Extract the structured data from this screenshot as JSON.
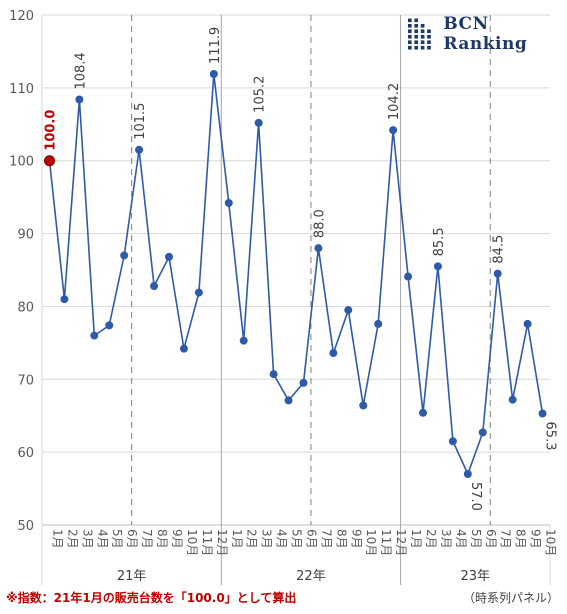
{
  "logo": {
    "text": "BCN Ranking",
    "color": "#1f3864"
  },
  "footnote": "※指数：21年1月の販売台数を「100.0」として算出",
  "panel_note": "（時系列パネル）",
  "chart_data": {
    "type": "line",
    "title": "",
    "xlabel": "",
    "ylabel": "",
    "ylim": [
      50,
      120
    ],
    "yticks": [
      50,
      60,
      70,
      80,
      90,
      100,
      110,
      120
    ],
    "grid": true,
    "categories": [
      "1月",
      "2月",
      "3月",
      "4月",
      "5月",
      "6月",
      "7月",
      "8月",
      "9月",
      "10月",
      "11月",
      "12月",
      "1月",
      "2月",
      "3月",
      "4月",
      "5月",
      "6月",
      "7月",
      "8月",
      "9月",
      "10月",
      "11月",
      "12月",
      "1月",
      "2月",
      "3月",
      "4月",
      "5月",
      "6月",
      "7月",
      "8月",
      "9月",
      "10月"
    ],
    "year_groups": [
      {
        "label": "21年",
        "start": 0,
        "end": 11
      },
      {
        "label": "22年",
        "start": 12,
        "end": 23
      },
      {
        "label": "23年",
        "start": 24,
        "end": 33
      }
    ],
    "series": [
      {
        "color": "#2e5aa8",
        "values": [
          100.0,
          81.0,
          108.4,
          76.0,
          77.4,
          87.0,
          101.5,
          82.8,
          86.8,
          74.2,
          81.9,
          111.9,
          94.2,
          75.3,
          105.2,
          70.7,
          67.1,
          69.5,
          88.0,
          73.6,
          79.5,
          66.4,
          77.6,
          104.2,
          84.1,
          65.4,
          85.5,
          61.5,
          57.0,
          62.7,
          84.5,
          67.2,
          77.6,
          65.3
        ]
      }
    ],
    "labeled_points": [
      {
        "index": 0,
        "text": "100.0",
        "highlight": true
      },
      {
        "index": 2,
        "text": "108.4"
      },
      {
        "index": 6,
        "text": "101.5"
      },
      {
        "index": 11,
        "text": "111.9"
      },
      {
        "index": 14,
        "text": "105.2"
      },
      {
        "index": 18,
        "text": "88.0"
      },
      {
        "index": 23,
        "text": "104.2"
      },
      {
        "index": 26,
        "text": "85.5"
      },
      {
        "index": 28,
        "text": "57.0",
        "below": true
      },
      {
        "index": 30,
        "text": "84.5"
      },
      {
        "index": 33,
        "text": "65.3",
        "below": true
      }
    ],
    "highlight_color": "#c00000",
    "dashed_separator_after": [
      5,
      17,
      29
    ],
    "solid_separator_after": [
      11,
      23
    ]
  }
}
